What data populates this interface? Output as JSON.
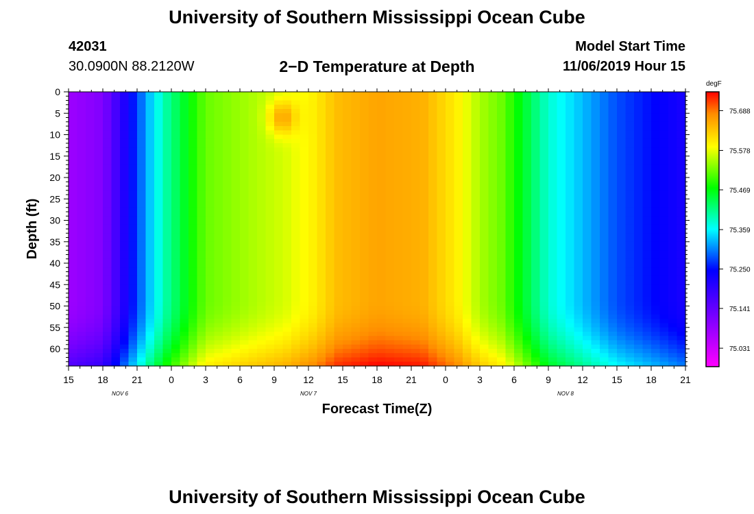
{
  "header": {
    "title": "University of Southern Mississippi Ocean Cube",
    "footer_title": "University of Southern Mississippi Ocean Cube",
    "station_id": "42031",
    "coordinates": "30.0900N 88.2120W",
    "model_start_label": "Model Start Time",
    "model_start_value": "11/06/2019 Hour 15"
  },
  "chart_data": {
    "type": "heatmap",
    "title": "2−D Temperature at Depth",
    "xlabel": "Forecast Time(Z)",
    "ylabel": "Depth (ft)",
    "x_ticks": [
      "15",
      "18",
      "21",
      "0",
      "3",
      "6",
      "9",
      "12",
      "15",
      "18",
      "21",
      "0",
      "3",
      "6",
      "9",
      "12",
      "15",
      "18",
      "21"
    ],
    "x_range_hours": [
      0,
      54
    ],
    "day_labels": [
      {
        "text": "NOV  6",
        "hour": 4.5
      },
      {
        "text": "NOV  7",
        "hour": 21
      },
      {
        "text": "NOV  8",
        "hour": 43.5
      }
    ],
    "y_ticks": [
      "0",
      "5",
      "10",
      "15",
      "20",
      "25",
      "30",
      "35",
      "40",
      "45",
      "50",
      "55",
      "60"
    ],
    "y_range_ft": [
      0,
      64
    ],
    "y_reversed": true,
    "colorbar": {
      "unit": "degF",
      "labels": [
        "75.688",
        "75.578",
        "75.469",
        "75.359",
        "75.250",
        "75.141",
        "75.031"
      ],
      "min": 74.98,
      "max": 75.74
    },
    "column_profile": [
      {
        "hour": 0,
        "value": 75.08
      },
      {
        "hour": 3,
        "value": 75.11
      },
      {
        "hour": 5,
        "value": 75.22
      },
      {
        "hour": 7,
        "value": 75.33
      },
      {
        "hour": 8.5,
        "value": 75.4
      },
      {
        "hour": 10.5,
        "value": 75.47
      },
      {
        "hour": 12,
        "value": 75.52
      },
      {
        "hour": 16,
        "value": 75.55
      },
      {
        "hour": 19,
        "value": 75.57
      },
      {
        "hour": 21.5,
        "value": 75.6
      },
      {
        "hour": 23.5,
        "value": 75.64
      },
      {
        "hour": 27,
        "value": 75.66
      },
      {
        "hour": 31,
        "value": 75.65
      },
      {
        "hour": 34,
        "value": 75.6
      },
      {
        "hour": 36,
        "value": 75.55
      },
      {
        "hour": 38,
        "value": 75.52
      },
      {
        "hour": 40,
        "value": 75.45
      },
      {
        "hour": 42,
        "value": 75.38
      },
      {
        "hour": 45,
        "value": 75.33
      },
      {
        "hour": 48,
        "value": 75.28
      },
      {
        "hour": 54,
        "value": 75.22
      }
    ]
  }
}
